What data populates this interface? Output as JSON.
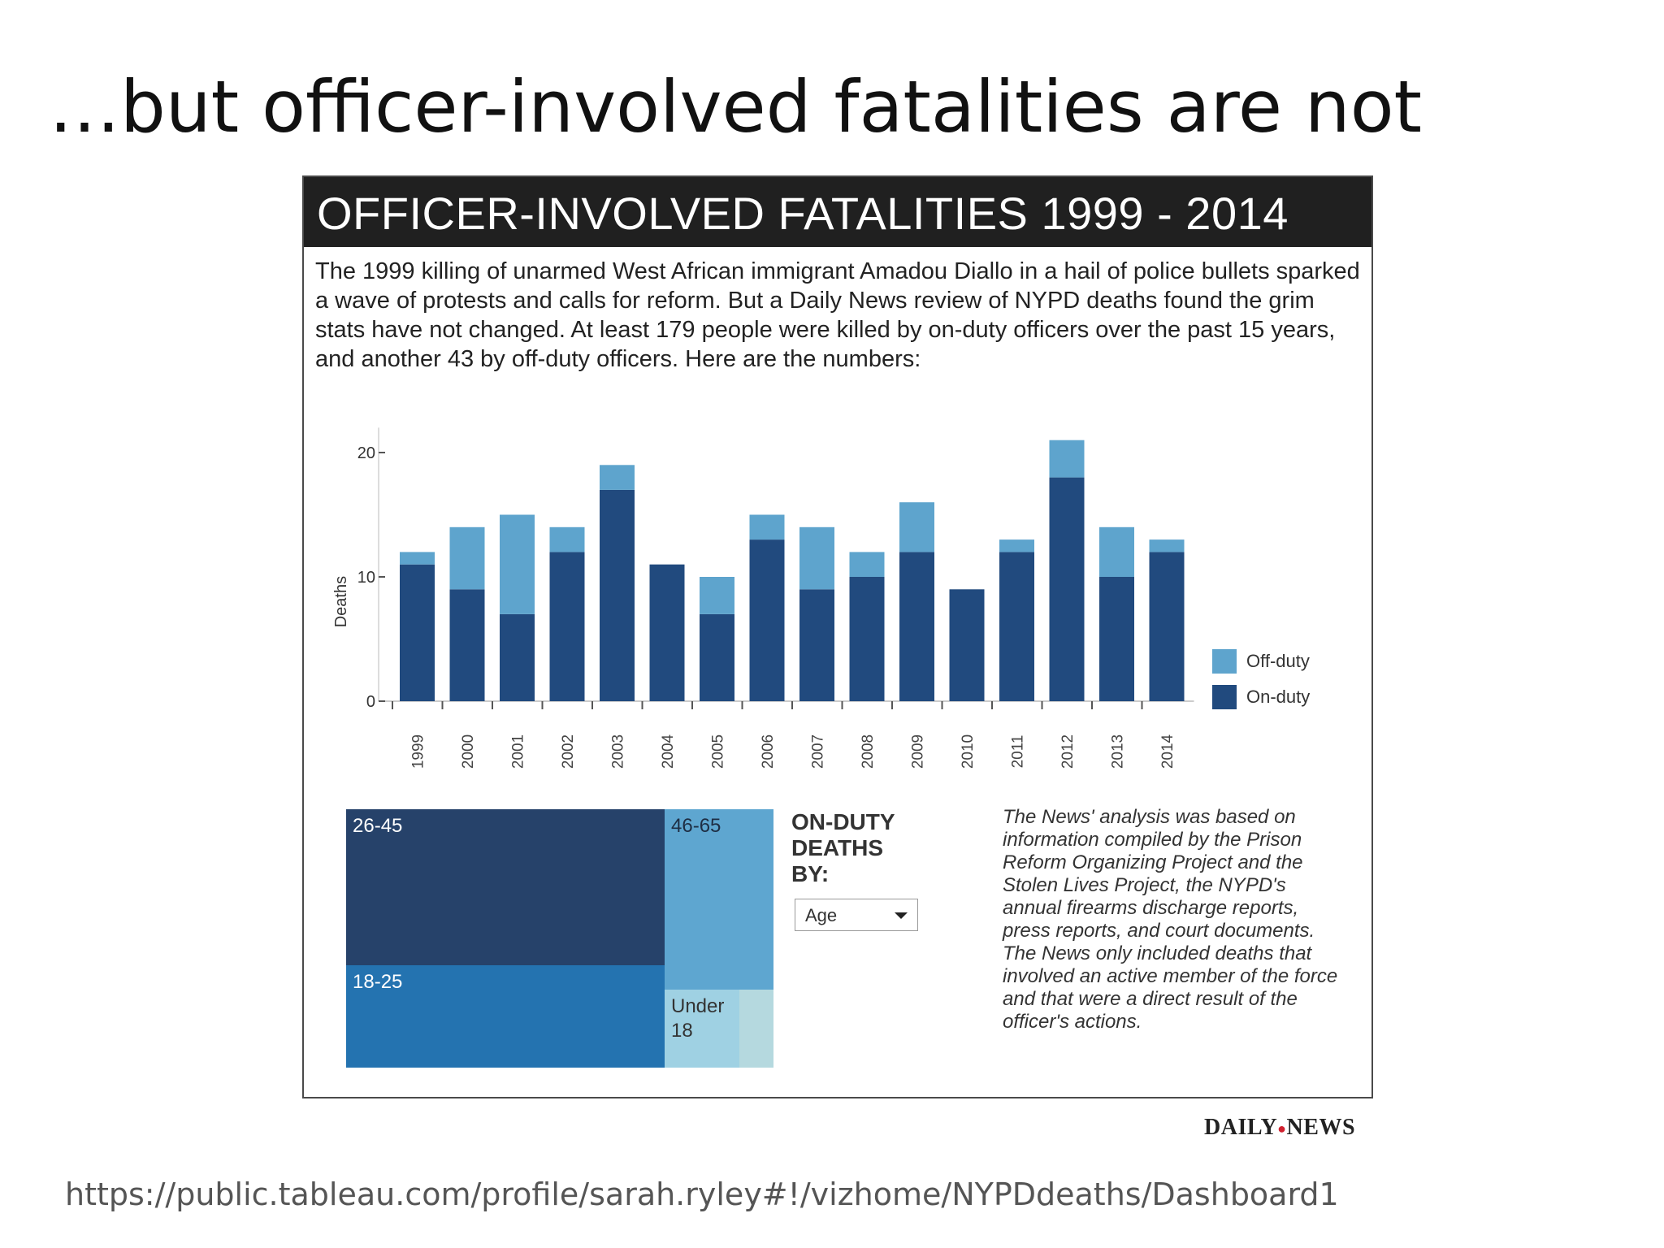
{
  "slide": {
    "title": "…but officer-involved fatalities are not",
    "source_url": "https://public.tableau.com/profile/sarah.ryley#!/vizhome/NYPDdeaths/Dashboard1"
  },
  "viz": {
    "title": "OFFICER-INVOLVED FATALITIES 1999 - 2014",
    "intro": "The 1999 killing of unarmed West African immigrant Amadou Diallo in a hail of police bullets sparked a wave of protests and calls for reform. But a Daily News review of NYPD deaths found the grim stats have not changed. At least 179 people were killed by on-duty officers over the past 15 years, and another 43 by off-duty officers. Here are the numbers:",
    "filter": {
      "title": "ON-DUTY\nDEATHS\nBY:",
      "selected": "Age"
    },
    "note": "The News' analysis was based on information compiled by the Prison Reform Organizing Project and the Stolen Lives Project, the NYPD's annual firearms discharge reports, press reports, and court documents. The News only included deaths that involved an active member of the force and that were a direct result of the officer's actions.",
    "logo": {
      "left": "DAILY",
      "right": "NEWS"
    }
  },
  "chart_data": [
    {
      "type": "bar",
      "stacked": true,
      "categories": [
        "1999",
        "2000",
        "2001",
        "2002",
        "2003",
        "2004",
        "2005",
        "2006",
        "2007",
        "2008",
        "2009",
        "2010",
        "2011",
        "2012",
        "2013",
        "2014"
      ],
      "series": [
        {
          "name": "On-duty",
          "color": "#214a7e",
          "values": [
            11,
            9,
            7,
            12,
            17,
            11,
            7,
            13,
            9,
            10,
            12,
            9,
            12,
            18,
            10,
            12
          ]
        },
        {
          "name": "Off-duty",
          "color": "#5ea4cd",
          "values": [
            1,
            5,
            8,
            2,
            2,
            0,
            3,
            2,
            5,
            2,
            4,
            0,
            1,
            3,
            4,
            1
          ]
        }
      ],
      "ylabel": "Deaths",
      "ylim": [
        0,
        22
      ],
      "yticks": [
        0,
        10,
        20
      ],
      "legend": "right"
    },
    {
      "type": "treemap",
      "title": "ON-DUTY DEATHS BY: Age",
      "cells": [
        {
          "label": "26-45",
          "color": "#26426a",
          "text_color": "#ffffff"
        },
        {
          "label": "18-25",
          "color": "#2473b0",
          "text_color": "#ffffff"
        },
        {
          "label": "46-65",
          "color": "#5ea6d0",
          "text_color": "#1e2e44"
        },
        {
          "label": "Under\n18",
          "color": "#9fd1e3",
          "text_color": "#333333"
        },
        {
          "label": "",
          "color": "#b5d9df",
          "text_color": "#333333"
        }
      ]
    }
  ]
}
